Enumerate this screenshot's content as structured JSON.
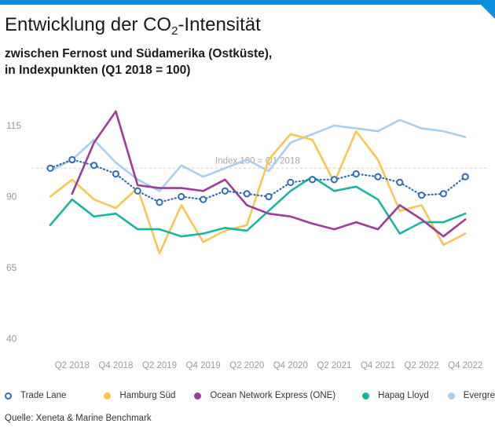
{
  "header": {
    "title_main": "Entwicklung der CO",
    "title_sub": "2",
    "title_end": "-Intensität",
    "subtitle_line1": "zwischen Fernost und Südamerika (Ostküste),",
    "subtitle_line2": "in Indexpunkten (Q1 2018 = 100)"
  },
  "footer": {
    "source": "Quelle: Xeneta & Marine Benchmark"
  },
  "chart_data": {
    "type": "line",
    "x": [
      "Q1 2018",
      "Q2 2018",
      "Q3 2018",
      "Q4 2018",
      "Q1 2019",
      "Q2 2019",
      "Q3 2019",
      "Q4 2019",
      "Q1 2020",
      "Q2 2020",
      "Q3 2020",
      "Q4 2020",
      "Q1 2021",
      "Q2 2021",
      "Q3 2021",
      "Q4 2021",
      "Q1 2022",
      "Q2 2022",
      "Q3 2022",
      "Q4 2022"
    ],
    "x_tick_labels": [
      "",
      "Q2 2018",
      "",
      "Q4 2018",
      "",
      "Q2 2019",
      "",
      "Q4 2019",
      "",
      "Q2 2020",
      "",
      "Q4 2020",
      "",
      "Q2 2021",
      "",
      "Q4 2021",
      "",
      "Q2 2022",
      "",
      "Q4 2022"
    ],
    "y_ticks": [
      40,
      65,
      90,
      115
    ],
    "ylim": [
      40,
      125
    ],
    "reference_line": {
      "value": 100,
      "label": "Index 100 = Q1 2018"
    },
    "series": [
      {
        "name": "Trade Lane",
        "color": "#2f6db5",
        "style": "dotted-circle",
        "values": [
          100,
          103,
          101,
          98,
          92,
          88,
          90,
          89,
          92,
          91,
          90,
          95,
          96,
          96,
          98,
          97,
          95,
          90.5,
          91,
          97
        ]
      },
      {
        "name": "Hamburg Süd",
        "color": "#f9c74f",
        "style": "solid",
        "values": [
          90,
          96,
          89,
          86,
          93,
          70,
          87,
          74,
          78,
          80,
          103,
          112,
          110,
          95,
          113,
          103,
          85,
          87,
          73,
          77
        ]
      },
      {
        "name": "Ocean Network Express (ONE)",
        "color": "#9c3d9a",
        "style": "solid",
        "values": [
          null,
          91,
          109,
          120,
          94,
          93,
          93,
          92,
          96,
          87,
          84,
          83,
          80.5,
          78.5,
          81,
          78.5,
          87,
          82,
          76,
          82
        ]
      },
      {
        "name": "Hapag Lloyd",
        "color": "#19b5a3",
        "style": "solid",
        "values": [
          80,
          89,
          83,
          84,
          78.5,
          78.5,
          76,
          77,
          79,
          78,
          85,
          92,
          97,
          92,
          93.5,
          89,
          77,
          81,
          81,
          84
        ]
      },
      {
        "name": "Evergreen",
        "color": "#a9cdec",
        "style": "solid",
        "values": [
          99,
          103,
          110,
          102,
          96,
          92,
          101,
          97,
          100,
          103,
          99,
          109,
          112,
          115,
          114,
          113,
          117,
          114,
          113,
          111
        ]
      }
    ]
  }
}
